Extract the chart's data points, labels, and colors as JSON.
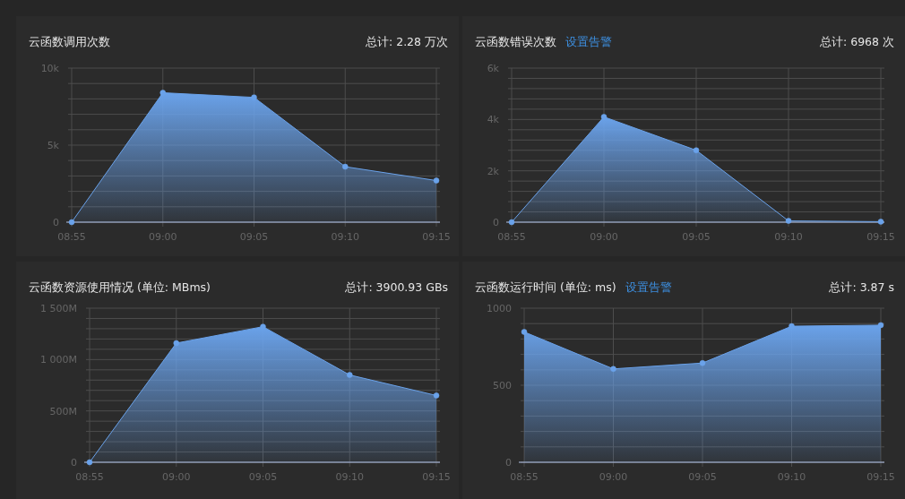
{
  "chart_data": [
    {
      "type": "area",
      "title": "云函数调用次数",
      "subtitle": "总计: 2.28 万次",
      "categories": [
        "08:55",
        "09:00",
        "09:05",
        "09:10",
        "09:15"
      ],
      "series": [
        {
          "color": "#6aa2ea",
          "values": [
            0,
            8400,
            8100,
            3600,
            2700
          ]
        }
      ],
      "ylim": [
        0,
        10000
      ],
      "yticks": [
        {
          "value": 0,
          "label": "0"
        },
        {
          "value": 1000,
          "label": null
        },
        {
          "value": 2000,
          "label": null
        },
        {
          "value": 3000,
          "label": null
        },
        {
          "value": 4000,
          "label": null
        },
        {
          "value": 5000,
          "label": "5k"
        },
        {
          "value": 6000,
          "label": null
        },
        {
          "value": 7000,
          "label": null
        },
        {
          "value": 8000,
          "label": null
        },
        {
          "value": 9000,
          "label": null
        },
        {
          "value": 10000,
          "label": "10k"
        }
      ],
      "grid": true,
      "marker": "circle"
    },
    {
      "type": "area",
      "title": "云函数错误次数",
      "annotations": [
        "设置告警"
      ],
      "subtitle": "总计: 6968 次",
      "categories": [
        "08:55",
        "09:00",
        "09:05",
        "09:10",
        "09:15"
      ],
      "series": [
        {
          "color": "#6aa2ea",
          "values": [
            0,
            4100,
            2800,
            50,
            20
          ]
        }
      ],
      "ylim": [
        0,
        6000
      ],
      "yticks": [
        {
          "value": 0,
          "label": "0"
        },
        {
          "value": 400,
          "label": null
        },
        {
          "value": 800,
          "label": null
        },
        {
          "value": 1200,
          "label": null
        },
        {
          "value": 1600,
          "label": null
        },
        {
          "value": 2000,
          "label": "2k"
        },
        {
          "value": 2400,
          "label": null
        },
        {
          "value": 2800,
          "label": null
        },
        {
          "value": 3200,
          "label": null
        },
        {
          "value": 3600,
          "label": null
        },
        {
          "value": 4000,
          "label": "4k"
        },
        {
          "value": 4400,
          "label": null
        },
        {
          "value": 4800,
          "label": null
        },
        {
          "value": 5200,
          "label": null
        },
        {
          "value": 5600,
          "label": null
        },
        {
          "value": 6000,
          "label": "6k"
        }
      ],
      "grid": true,
      "marker": "circle"
    },
    {
      "type": "area",
      "title": "云函数资源使用情况 (单位: MBms)",
      "subtitle": "总计: 3900.93 GBs",
      "categories": [
        "08:55",
        "09:00",
        "09:05",
        "09:10",
        "09:15"
      ],
      "series": [
        {
          "color": "#6aa2ea",
          "values": [
            0,
            1160000000,
            1320000000,
            850000000,
            650000000
          ]
        }
      ],
      "ylim": [
        0,
        1500000000
      ],
      "yticks": [
        {
          "value": 0,
          "label": "0"
        },
        {
          "value": 100000000,
          "label": null
        },
        {
          "value": 200000000,
          "label": null
        },
        {
          "value": 300000000,
          "label": null
        },
        {
          "value": 400000000,
          "label": null
        },
        {
          "value": 500000000,
          "label": "500M"
        },
        {
          "value": 600000000,
          "label": null
        },
        {
          "value": 700000000,
          "label": null
        },
        {
          "value": 800000000,
          "label": null
        },
        {
          "value": 900000000,
          "label": null
        },
        {
          "value": 1000000000,
          "label": "1 000M"
        },
        {
          "value": 1100000000,
          "label": null
        },
        {
          "value": 1200000000,
          "label": null
        },
        {
          "value": 1300000000,
          "label": null
        },
        {
          "value": 1400000000,
          "label": null
        },
        {
          "value": 1500000000,
          "label": "1 500M"
        }
      ],
      "grid": true,
      "marker": "circle"
    },
    {
      "type": "area",
      "title": "云函数运行时间 (单位: ms)",
      "annotations": [
        "设置告警"
      ],
      "subtitle": "总计: 3.87 s",
      "categories": [
        "08:55",
        "09:00",
        "09:05",
        "09:10",
        "09:15"
      ],
      "series": [
        {
          "color": "#6aa2ea",
          "values": [
            846,
            606,
            644,
            883,
            890
          ]
        }
      ],
      "ylim": [
        0,
        1000
      ],
      "yticks": [
        {
          "value": 0,
          "label": "0"
        },
        {
          "value": 100,
          "label": null
        },
        {
          "value": 200,
          "label": null
        },
        {
          "value": 300,
          "label": null
        },
        {
          "value": 400,
          "label": null
        },
        {
          "value": 500,
          "label": "500"
        },
        {
          "value": 600,
          "label": null
        },
        {
          "value": 700,
          "label": null
        },
        {
          "value": 800,
          "label": null
        },
        {
          "value": 900,
          "label": null
        },
        {
          "value": 1000,
          "label": "1000"
        }
      ],
      "grid": true,
      "marker": "circle"
    }
  ]
}
